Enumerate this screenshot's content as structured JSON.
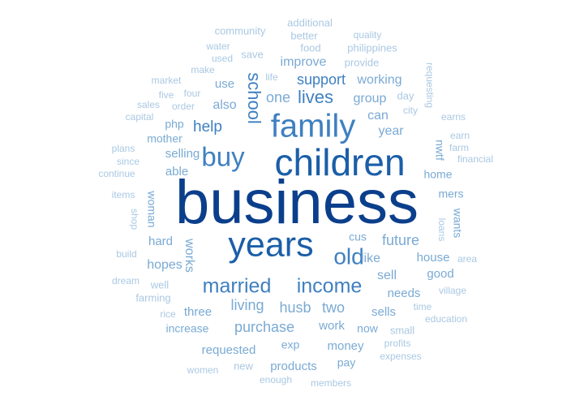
{
  "chart_data": {
    "type": "wordcloud",
    "title": "",
    "palette": [
      "#0b3f8c",
      "#1b5ea8",
      "#3f80c0",
      "#7aaad4",
      "#aac8e2"
    ],
    "words": [
      {
        "text": "business",
        "weight": 1.0
      },
      {
        "text": "children",
        "weight": 0.82
      },
      {
        "text": "years",
        "weight": 0.78
      },
      {
        "text": "family",
        "weight": 0.74
      },
      {
        "text": "buy",
        "weight": 0.6
      },
      {
        "text": "old",
        "weight": 0.52
      },
      {
        "text": "married",
        "weight": 0.5
      },
      {
        "text": "income",
        "weight": 0.5
      },
      {
        "text": "school",
        "weight": 0.45
      },
      {
        "text": "lives",
        "weight": 0.45
      },
      {
        "text": "help",
        "weight": 0.42
      },
      {
        "text": "future",
        "weight": 0.4
      },
      {
        "text": "support",
        "weight": 0.4
      },
      {
        "text": "living",
        "weight": 0.4
      },
      {
        "text": "purchase",
        "weight": 0.38
      },
      {
        "text": "husb",
        "weight": 0.38
      },
      {
        "text": "two",
        "weight": 0.38
      },
      {
        "text": "one",
        "weight": 0.38
      },
      {
        "text": "working",
        "weight": 0.35
      },
      {
        "text": "improve",
        "weight": 0.33
      },
      {
        "text": "also",
        "weight": 0.33
      },
      {
        "text": "year",
        "weight": 0.33
      },
      {
        "text": "group",
        "weight": 0.33
      },
      {
        "text": "like",
        "weight": 0.33
      },
      {
        "text": "sell",
        "weight": 0.33
      },
      {
        "text": "hopes",
        "weight": 0.33
      },
      {
        "text": "works",
        "weight": 0.33
      },
      {
        "text": "can",
        "weight": 0.3
      },
      {
        "text": "hard",
        "weight": 0.3
      },
      {
        "text": "selling",
        "weight": 0.3
      },
      {
        "text": "able",
        "weight": 0.3
      },
      {
        "text": "use",
        "weight": 0.3
      },
      {
        "text": "three",
        "weight": 0.3
      },
      {
        "text": "sells",
        "weight": 0.3
      },
      {
        "text": "work",
        "weight": 0.3
      },
      {
        "text": "needs",
        "weight": 0.3
      },
      {
        "text": "house",
        "weight": 0.3
      },
      {
        "text": "good",
        "weight": 0.3
      },
      {
        "text": "money",
        "weight": 0.3
      },
      {
        "text": "requested",
        "weight": 0.3
      },
      {
        "text": "products",
        "weight": 0.3
      },
      {
        "text": "home",
        "weight": 0.27
      },
      {
        "text": "mers",
        "weight": 0.27
      },
      {
        "text": "wants",
        "weight": 0.27
      },
      {
        "text": "woman",
        "weight": 0.27
      },
      {
        "text": "php",
        "weight": 0.27
      },
      {
        "text": "mother",
        "weight": 0.25
      },
      {
        "text": "nwtf",
        "weight": 0.25
      },
      {
        "text": "cus",
        "weight": 0.25
      },
      {
        "text": "exp",
        "weight": 0.25
      },
      {
        "text": "now",
        "weight": 0.25
      },
      {
        "text": "pay",
        "weight": 0.25
      },
      {
        "text": "increase",
        "weight": 0.25
      },
      {
        "text": "small",
        "weight": 0.22
      },
      {
        "text": "day",
        "weight": 0.22
      },
      {
        "text": "provide",
        "weight": 0.22
      },
      {
        "text": "save",
        "weight": 0.22
      },
      {
        "text": "philippines",
        "weight": 0.22
      },
      {
        "text": "food",
        "weight": 0.22
      },
      {
        "text": "better",
        "weight": 0.22
      },
      {
        "text": "additional",
        "weight": 0.22
      },
      {
        "text": "community",
        "weight": 0.22
      },
      {
        "text": "quality",
        "weight": 0.2
      },
      {
        "text": "water",
        "weight": 0.2
      },
      {
        "text": "used",
        "weight": 0.2
      },
      {
        "text": "make",
        "weight": 0.2
      },
      {
        "text": "four",
        "weight": 0.2
      },
      {
        "text": "five",
        "weight": 0.2
      },
      {
        "text": "market",
        "weight": 0.2
      },
      {
        "text": "order",
        "weight": 0.2
      },
      {
        "text": "sales",
        "weight": 0.2
      },
      {
        "text": "capital",
        "weight": 0.2
      },
      {
        "text": "life",
        "weight": 0.2
      },
      {
        "text": "requesting",
        "weight": 0.2
      },
      {
        "text": "city",
        "weight": 0.2
      },
      {
        "text": "earns",
        "weight": 0.2
      },
      {
        "text": "earn",
        "weight": 0.2
      },
      {
        "text": "farm",
        "weight": 0.2
      },
      {
        "text": "financial",
        "weight": 0.2
      },
      {
        "text": "plans",
        "weight": 0.2
      },
      {
        "text": "since",
        "weight": 0.2
      },
      {
        "text": "continue",
        "weight": 0.2
      },
      {
        "text": "items",
        "weight": 0.2
      },
      {
        "text": "shop",
        "weight": 0.2
      },
      {
        "text": "build",
        "weight": 0.2
      },
      {
        "text": "dream",
        "weight": 0.2
      },
      {
        "text": "well",
        "weight": 0.22
      },
      {
        "text": "farming",
        "weight": 0.22
      },
      {
        "text": "rice",
        "weight": 0.2
      },
      {
        "text": "loans",
        "weight": 0.2
      },
      {
        "text": "area",
        "weight": 0.2
      },
      {
        "text": "village",
        "weight": 0.2
      },
      {
        "text": "time",
        "weight": 0.2
      },
      {
        "text": "education",
        "weight": 0.2
      },
      {
        "text": "profits",
        "weight": 0.2
      },
      {
        "text": "expenses",
        "weight": 0.2
      },
      {
        "text": "women",
        "weight": 0.2
      },
      {
        "text": "new",
        "weight": 0.22
      },
      {
        "text": "enough",
        "weight": 0.2
      },
      {
        "text": "members",
        "weight": 0.2
      }
    ]
  }
}
